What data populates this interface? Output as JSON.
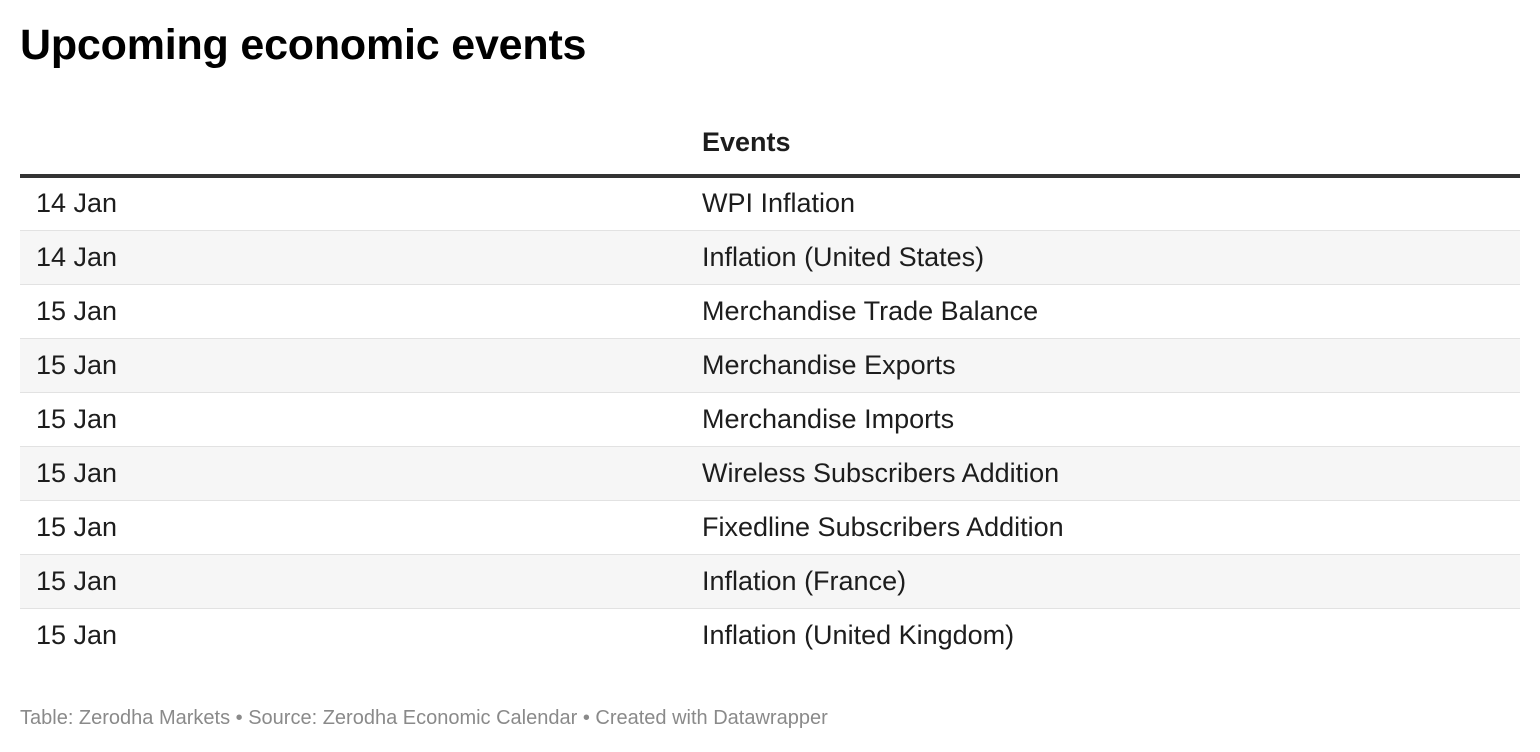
{
  "chart_title": "Upcoming economic events",
  "chart_data": {
    "type": "table",
    "title": "Upcoming economic events",
    "columns": [
      "",
      "Events"
    ],
    "rows": [
      {
        "date": "14 Jan",
        "event": "WPI Inflation"
      },
      {
        "date": "14 Jan",
        "event": "Inflation (United States)"
      },
      {
        "date": "15 Jan",
        "event": "Merchandise Trade Balance"
      },
      {
        "date": "15 Jan",
        "event": "Merchandise Exports"
      },
      {
        "date": "15 Jan",
        "event": "Merchandise Imports"
      },
      {
        "date": "15 Jan",
        "event": "Wireless Subscribers Addition"
      },
      {
        "date": "15 Jan",
        "event": "Fixedline Subscribers Addition"
      },
      {
        "date": "15 Jan",
        "event": "Inflation (France)"
      },
      {
        "date": "15 Jan",
        "event": "Inflation (United Kingdom)"
      }
    ]
  },
  "footer": {
    "text": "Table: Zerodha Markets • Source: Zerodha Economic Calendar • Created with Datawrapper"
  },
  "colors": {
    "header_rule": "#333333",
    "stripe": "#f6f6f6",
    "row_divider": "#e2e2e2",
    "footer_text": "#8a8a8a"
  }
}
